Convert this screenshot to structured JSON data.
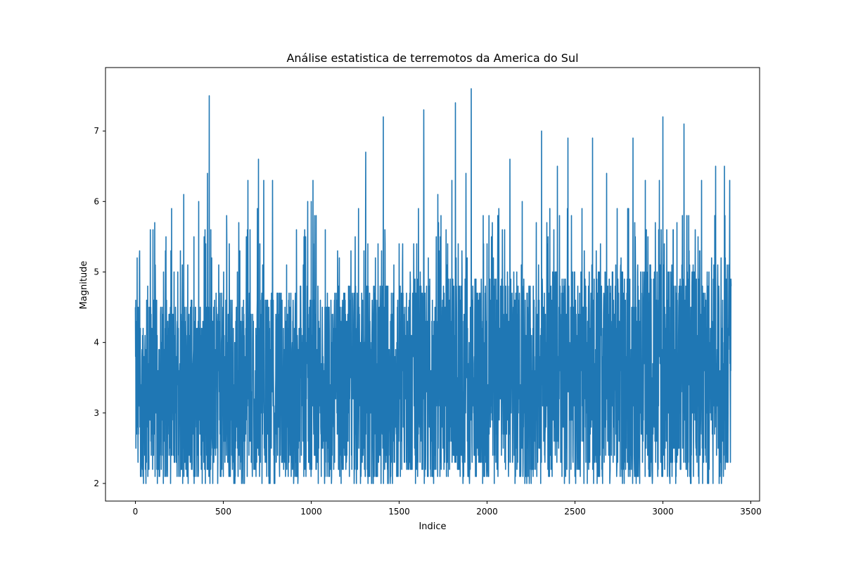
{
  "chart_data": {
    "type": "line",
    "title": "Análise estatistica de terremotos da America do Sul",
    "xlabel": "Indice",
    "ylabel": "Magnitude",
    "xlim": [
      -170,
      3550
    ],
    "ylim": [
      1.75,
      7.9
    ],
    "xticks": [
      0,
      500,
      1000,
      1500,
      2000,
      2500,
      3000,
      3500
    ],
    "yticks": [
      2,
      3,
      4,
      5,
      6,
      7
    ],
    "grid": false,
    "legend": "none",
    "n_points": 3389,
    "series": [
      {
        "color": "#1f77b4",
        "anchors": [
          [
            0,
            4.5
          ],
          [
            5,
            3.0
          ],
          [
            10,
            5.2
          ],
          [
            15,
            2.3
          ],
          [
            25,
            4.5
          ],
          [
            40,
            2.2
          ],
          [
            60,
            2.0
          ],
          [
            70,
            4.8
          ],
          [
            90,
            2.4
          ],
          [
            100,
            5.6
          ],
          [
            110,
            5.7
          ],
          [
            130,
            2.2
          ],
          [
            160,
            5.0
          ],
          [
            200,
            2.0
          ],
          [
            220,
            5.0
          ],
          [
            260,
            2.3
          ],
          [
            275,
            6.1
          ],
          [
            300,
            2.0
          ],
          [
            320,
            4.6
          ],
          [
            340,
            2.1
          ],
          [
            360,
            6.0
          ],
          [
            380,
            2.0
          ],
          [
            400,
            5.4
          ],
          [
            410,
            6.4
          ],
          [
            420,
            7.5
          ],
          [
            440,
            2.0
          ],
          [
            470,
            4.4
          ],
          [
            500,
            2.1
          ],
          [
            520,
            5.4
          ],
          [
            560,
            2.0
          ],
          [
            580,
            5.0
          ],
          [
            620,
            2.0
          ],
          [
            640,
            6.3
          ],
          [
            680,
            2.2
          ],
          [
            700,
            6.6
          ],
          [
            730,
            6.3
          ],
          [
            760,
            2.0
          ],
          [
            780,
            6.3
          ],
          [
            820,
            2.1
          ],
          [
            860,
            5.1
          ],
          [
            900,
            2.0
          ],
          [
            940,
            4.8
          ],
          [
            980,
            6.0
          ],
          [
            1000,
            6.0
          ],
          [
            1010,
            6.3
          ],
          [
            1040,
            2.0
          ],
          [
            1080,
            5.6
          ],
          [
            1100,
            2.1
          ],
          [
            1150,
            5.3
          ],
          [
            1200,
            2.3
          ],
          [
            1250,
            5.5
          ],
          [
            1280,
            2.0
          ],
          [
            1300,
            5.3
          ],
          [
            1310,
            6.7
          ],
          [
            1350,
            2.5
          ],
          [
            1400,
            5.3
          ],
          [
            1410,
            7.2
          ],
          [
            1450,
            2.1
          ],
          [
            1500,
            5.4
          ],
          [
            1550,
            2.2
          ],
          [
            1600,
            5.4
          ],
          [
            1630,
            2.2
          ],
          [
            1640,
            7.3
          ],
          [
            1680,
            2.1
          ],
          [
            1720,
            6.1
          ],
          [
            1760,
            2.5
          ],
          [
            1800,
            6.3
          ],
          [
            1820,
            7.4
          ],
          [
            1850,
            2.4
          ],
          [
            1880,
            6.4
          ],
          [
            1900,
            2.0
          ],
          [
            1910,
            7.6
          ],
          [
            1950,
            2.4
          ],
          [
            2000,
            5.4
          ],
          [
            2050,
            2.3
          ],
          [
            2100,
            5.6
          ],
          [
            2130,
            6.6
          ],
          [
            2160,
            2.3
          ],
          [
            2200,
            6.0
          ],
          [
            2240,
            2.0
          ],
          [
            2280,
            5.7
          ],
          [
            2310,
            7.0
          ],
          [
            2350,
            2.1
          ],
          [
            2380,
            5.6
          ],
          [
            2400,
            6.5
          ],
          [
            2440,
            2.0
          ],
          [
            2460,
            6.9
          ],
          [
            2500,
            2.1
          ],
          [
            2540,
            5.9
          ],
          [
            2570,
            2.0
          ],
          [
            2600,
            6.9
          ],
          [
            2640,
            2.1
          ],
          [
            2680,
            6.4
          ],
          [
            2700,
            2.2
          ],
          [
            2740,
            5.9
          ],
          [
            2780,
            2.0
          ],
          [
            2800,
            5.9
          ],
          [
            2830,
            6.9
          ],
          [
            2860,
            2.1
          ],
          [
            2900,
            6.3
          ],
          [
            2940,
            2.0
          ],
          [
            2980,
            6.3
          ],
          [
            3000,
            7.2
          ],
          [
            3040,
            2.0
          ],
          [
            3080,
            5.7
          ],
          [
            3120,
            7.1
          ],
          [
            3160,
            2.0
          ],
          [
            3200,
            5.5
          ],
          [
            3220,
            6.3
          ],
          [
            3260,
            2.0
          ],
          [
            3300,
            6.5
          ],
          [
            3320,
            2.0
          ],
          [
            3350,
            6.5
          ],
          [
            3370,
            2.3
          ],
          [
            3380,
            6.3
          ],
          [
            3388,
            4.8
          ]
        ]
      }
    ]
  }
}
